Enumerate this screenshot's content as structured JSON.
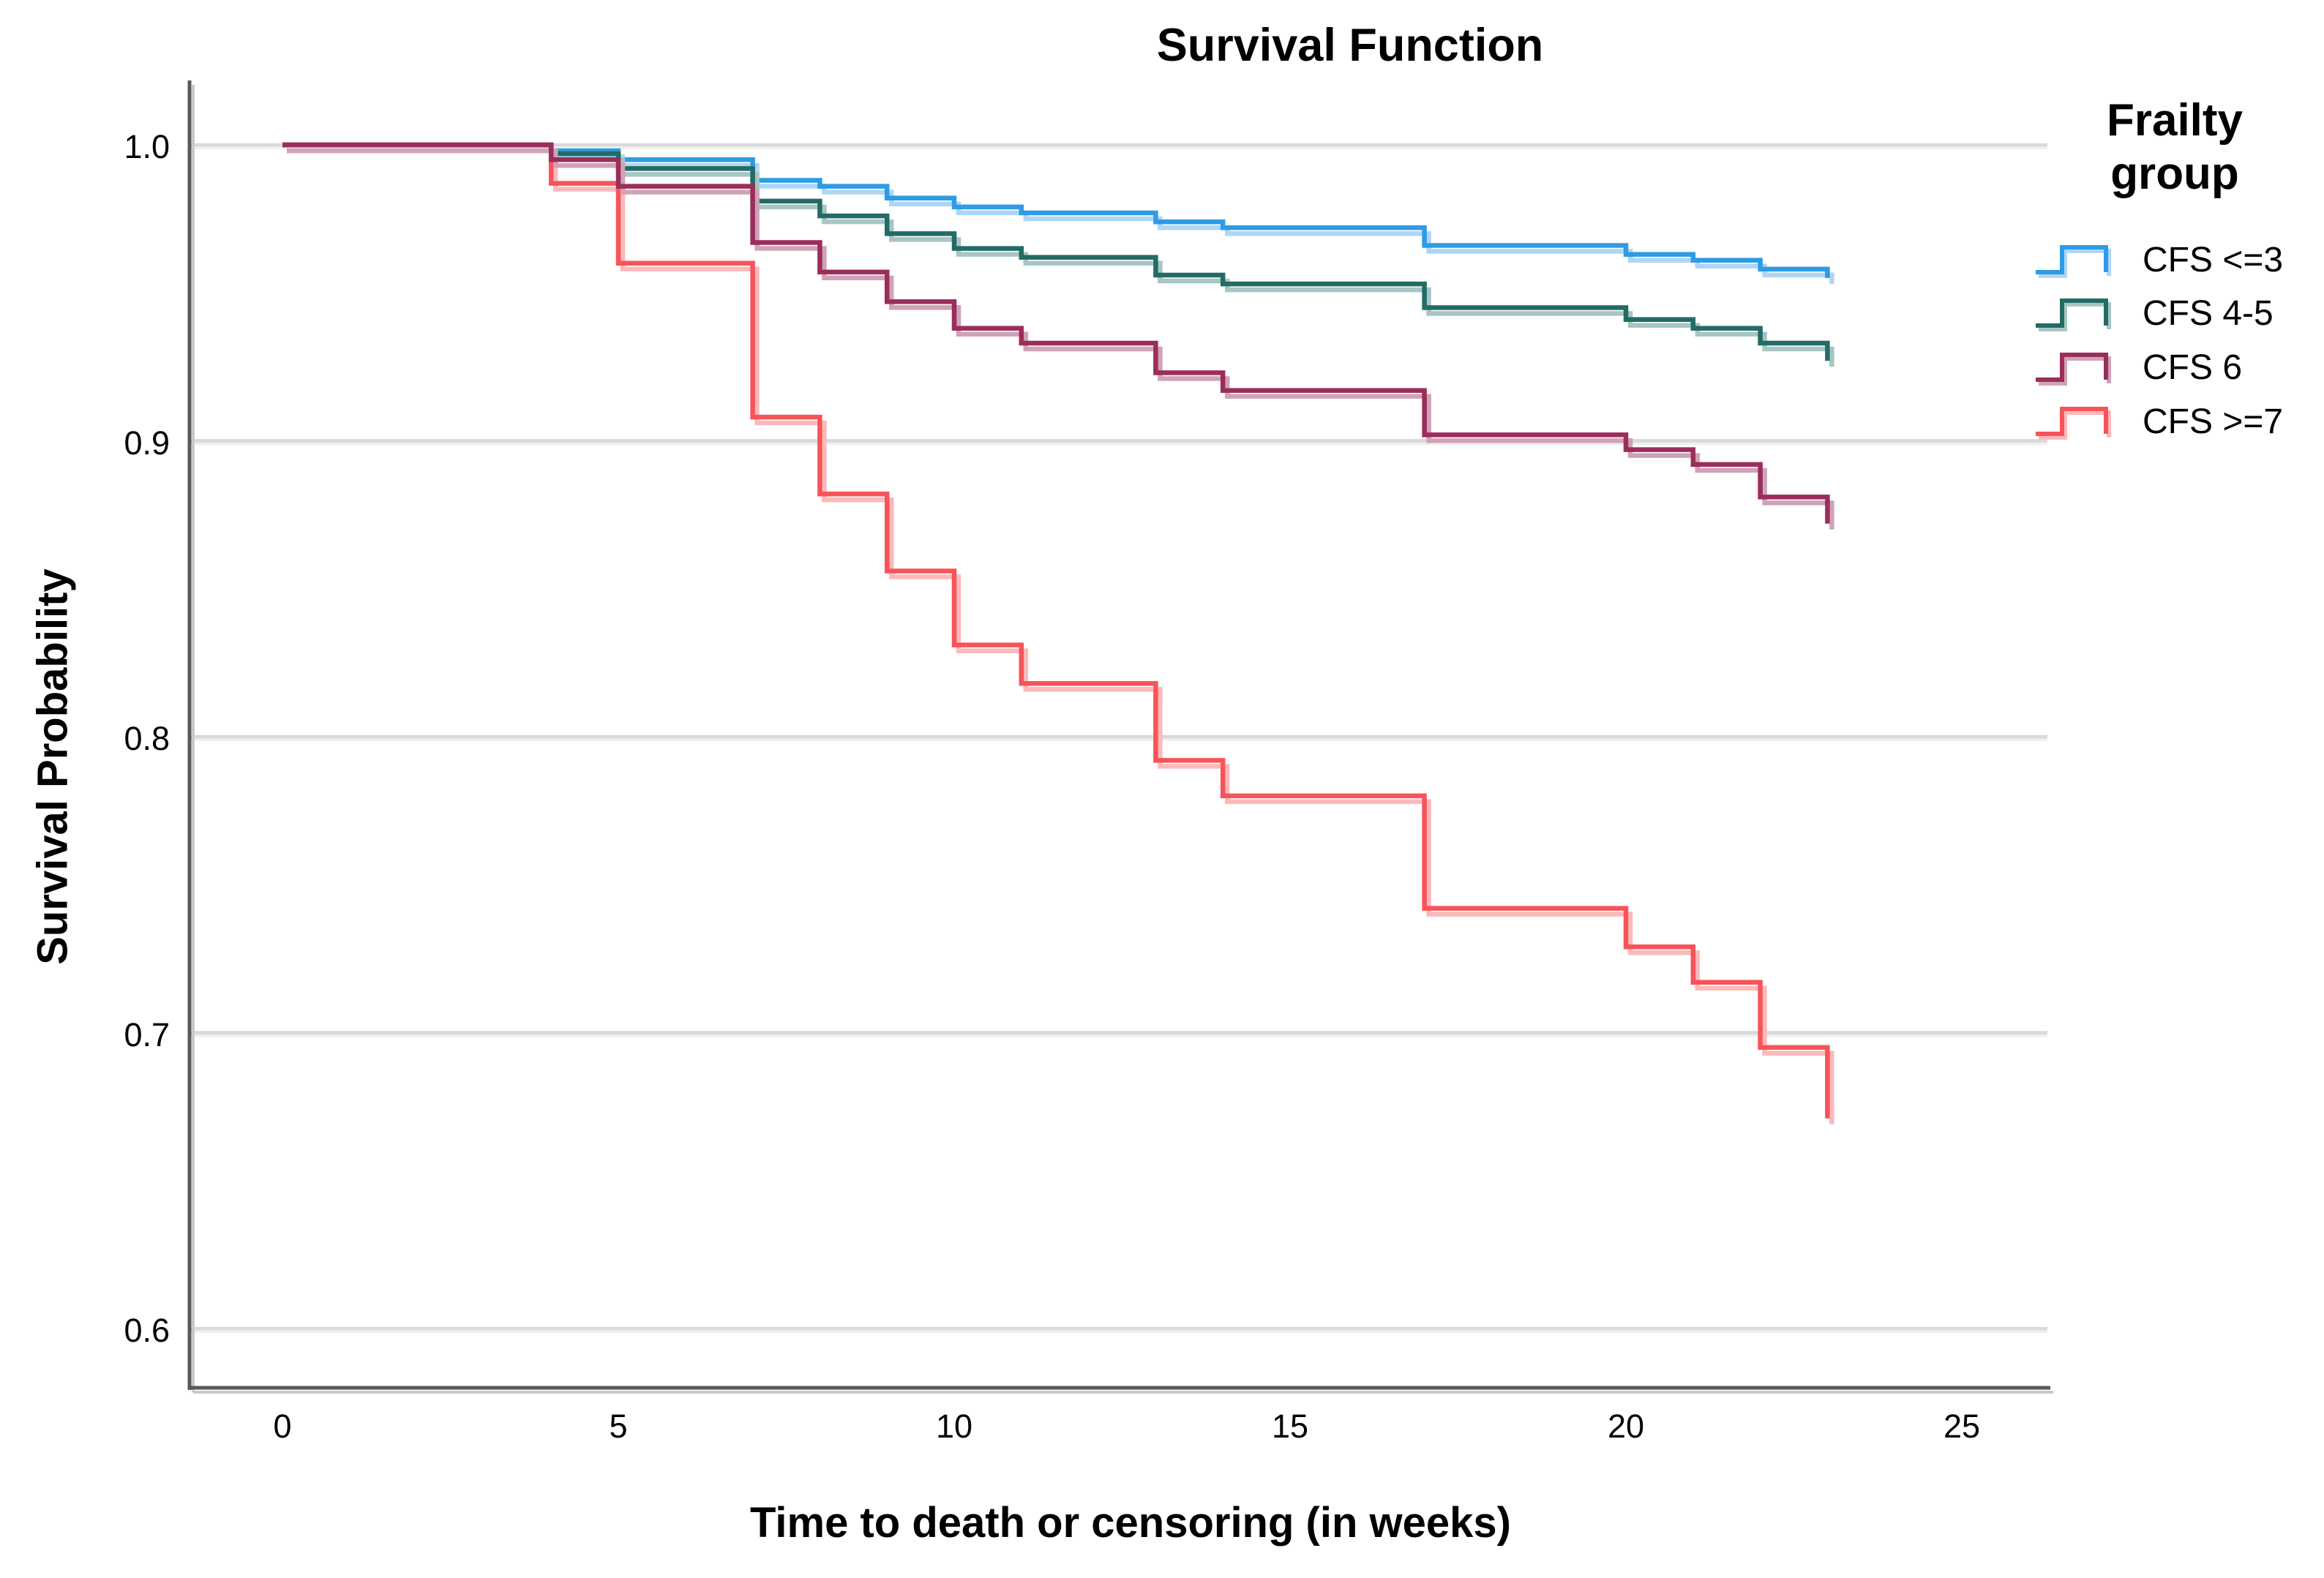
{
  "title": "Survival Function",
  "axes": {
    "y_title": "Survival Probability",
    "x_title": "Time to death or censoring (in weeks)",
    "y_ticks": [
      {
        "label": "1.0",
        "value": 1.0
      },
      {
        "label": "0.9",
        "value": 0.9
      },
      {
        "label": "0.8",
        "value": 0.8
      },
      {
        "label": "0.7",
        "value": 0.7
      },
      {
        "label": "0.6",
        "value": 0.6
      }
    ],
    "x_ticks": [
      {
        "label": "0",
        "value": 0
      },
      {
        "label": "5",
        "value": 5
      },
      {
        "label": "10",
        "value": 10
      },
      {
        "label": "15",
        "value": 15
      },
      {
        "label": "20",
        "value": 20
      },
      {
        "label": "25",
        "value": 25
      }
    ]
  },
  "legend": {
    "title_line1": "Frailty",
    "title_line2": "group",
    "items": [
      {
        "label": "CFS <=3",
        "color": "#2d9be5",
        "shadow": "#aed6f4"
      },
      {
        "label": "CFS 4-5",
        "color": "#236b66",
        "shadow": "#a7c6c3"
      },
      {
        "label": "CFS 6",
        "color": "#9b2d5b",
        "shadow": "#cfa3b6"
      },
      {
        "label": "CFS >=7",
        "color": "#f65459",
        "shadow": "#fbb9ba"
      }
    ]
  },
  "chart_data": {
    "type": "line",
    "subtype": "kaplan-meier-step",
    "title": "Survival Function",
    "xlabel": "Time to death or censoring (in weeks)",
    "ylabel": "Survival Probability",
    "xlim": [
      0,
      25
    ],
    "ylim": [
      0.57,
      1.02
    ],
    "grid": "horizontal",
    "legend_position": "right",
    "legend_title": "Frailty group",
    "gridline_color": "#d9d9d9",
    "axis_color": "#595959",
    "axis_shadow_color": "#c9c9c9",
    "series": [
      {
        "name": "CFS <=3",
        "color": "#2d9be5",
        "shadow": "#aed6f4",
        "points": [
          [
            0,
            1.0
          ],
          [
            4,
            0.998
          ],
          [
            5,
            0.995
          ],
          [
            7,
            0.988
          ],
          [
            8,
            0.986
          ],
          [
            9,
            0.982
          ],
          [
            10,
            0.979
          ],
          [
            11,
            0.977
          ],
          [
            13,
            0.974
          ],
          [
            14,
            0.972
          ],
          [
            17,
            0.966
          ],
          [
            20,
            0.963
          ],
          [
            21,
            0.961
          ],
          [
            22,
            0.958
          ],
          [
            23,
            0.955
          ]
        ]
      },
      {
        "name": "CFS 4-5",
        "color": "#236b66",
        "shadow": "#a7c6c3",
        "points": [
          [
            0,
            1.0
          ],
          [
            4,
            0.997
          ],
          [
            5,
            0.992
          ],
          [
            7,
            0.981
          ],
          [
            8,
            0.976
          ],
          [
            9,
            0.97
          ],
          [
            10,
            0.965
          ],
          [
            11,
            0.962
          ],
          [
            13,
            0.956
          ],
          [
            14,
            0.953
          ],
          [
            17,
            0.945
          ],
          [
            20,
            0.941
          ],
          [
            21,
            0.938
          ],
          [
            22,
            0.933
          ],
          [
            23,
            0.927
          ]
        ]
      },
      {
        "name": "CFS >=7",
        "color": "#f65459",
        "shadow": "#fbb9ba",
        "points": [
          [
            0,
            1.0
          ],
          [
            4,
            0.987
          ],
          [
            5,
            0.96
          ],
          [
            7,
            0.908
          ],
          [
            8,
            0.882
          ],
          [
            9,
            0.856
          ],
          [
            10,
            0.831
          ],
          [
            11,
            0.818
          ],
          [
            13,
            0.792
          ],
          [
            14,
            0.78
          ],
          [
            17,
            0.742
          ],
          [
            20,
            0.729
          ],
          [
            21,
            0.717
          ],
          [
            22,
            0.695
          ],
          [
            23,
            0.671
          ]
        ]
      },
      {
        "name": "CFS 6",
        "color": "#9b2d5b",
        "shadow": "#cfa3b6",
        "points": [
          [
            0,
            1.0
          ],
          [
            4,
            0.995
          ],
          [
            5,
            0.986
          ],
          [
            7,
            0.967
          ],
          [
            8,
            0.957
          ],
          [
            9,
            0.947
          ],
          [
            10,
            0.938
          ],
          [
            11,
            0.933
          ],
          [
            13,
            0.923
          ],
          [
            14,
            0.917
          ],
          [
            17,
            0.902
          ],
          [
            20,
            0.897
          ],
          [
            21,
            0.892
          ],
          [
            22,
            0.881
          ],
          [
            23,
            0.872
          ]
        ]
      }
    ]
  }
}
